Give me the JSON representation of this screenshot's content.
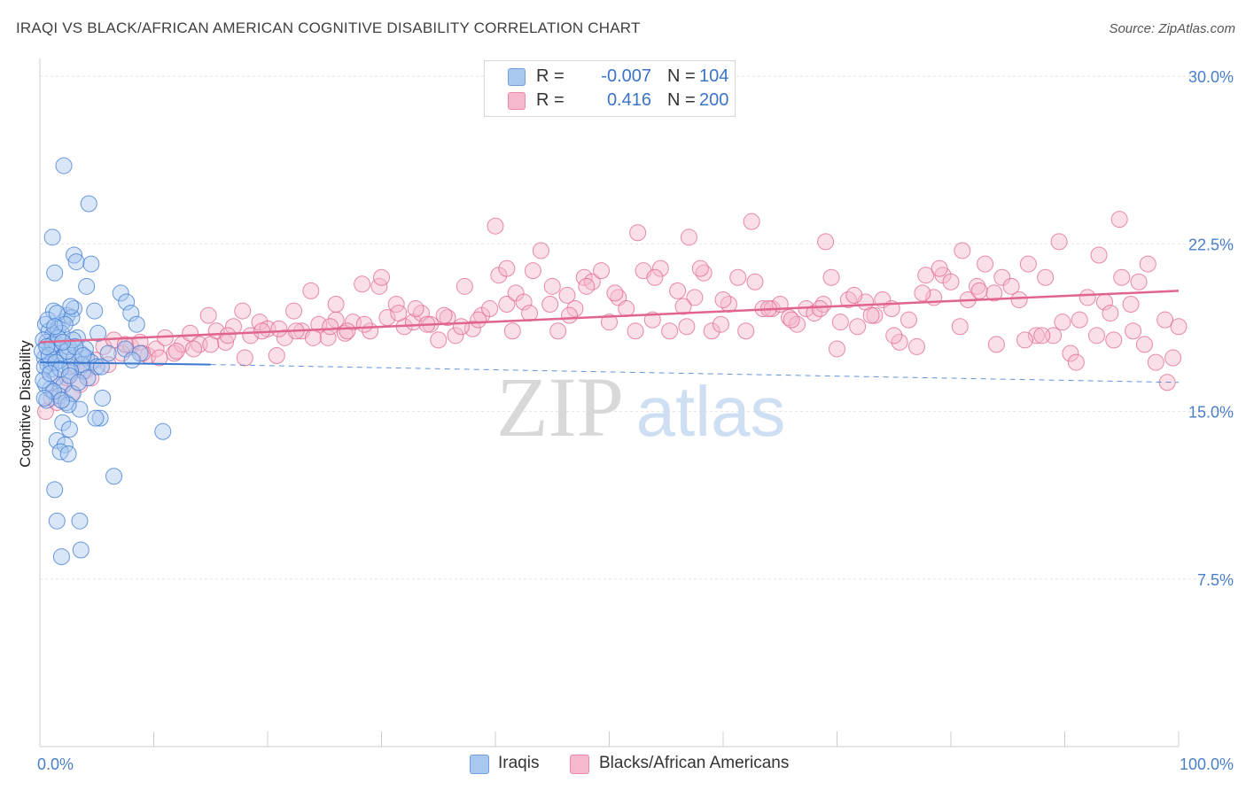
{
  "title": "IRAQI VS BLACK/AFRICAN AMERICAN COGNITIVE DISABILITY CORRELATION CHART",
  "source": "Source: ZipAtlas.com",
  "watermark": {
    "zip": "ZIP",
    "atlas": "atlas"
  },
  "legend": {
    "rows": [
      {
        "r_label": "R =",
        "r_value": "-0.007",
        "n_label": "N =",
        "n_value": "104",
        "color": "#a8c8f0"
      },
      {
        "r_label": "R =",
        "r_value": "0.416",
        "n_label": "N =",
        "n_value": "200",
        "color": "#f5b8cc"
      }
    ]
  },
  "bottom_legend": {
    "items": [
      {
        "label": "Iraqis",
        "color": "#a8c8f0"
      },
      {
        "label": "Blacks/African Americans",
        "color": "#f5b8cc"
      }
    ]
  },
  "chart_data": {
    "type": "scatter",
    "title": "IRAQI VS BLACK/AFRICAN AMERICAN COGNITIVE DISABILITY CORRELATION CHART",
    "xlabel": "",
    "ylabel": "Cognitive Disability",
    "xlim": [
      0,
      100
    ],
    "ylim": [
      0,
      30.8
    ],
    "x_tick_labels": [
      "0.0%",
      "100.0%"
    ],
    "y_ticks": [
      7.5,
      15.0,
      22.5,
      30.0
    ],
    "y_tick_labels": [
      "7.5%",
      "15.0%",
      "22.5%",
      "30.0%"
    ],
    "grid": true,
    "series": [
      {
        "name": "Iraqis",
        "color": "#3b78d0",
        "fill": "#a8c8f0",
        "trend": {
          "x0": 0,
          "y0": 17.2,
          "x1": 15,
          "y1": 17.1,
          "dashed_to_x": 100,
          "dashed_y1": 16.3
        },
        "points": [
          [
            0.5,
            18.9
          ],
          [
            0.8,
            18.6
          ],
          [
            1.1,
            18.4
          ],
          [
            0.6,
            18.1
          ],
          [
            1.5,
            18.0
          ],
          [
            0.9,
            17.8
          ],
          [
            1.3,
            17.6
          ],
          [
            0.4,
            17.4
          ],
          [
            1.8,
            17.3
          ],
          [
            2.2,
            17.5
          ],
          [
            0.7,
            17.1
          ],
          [
            1.0,
            16.9
          ],
          [
            2.6,
            17.0
          ],
          [
            0.3,
            18.2
          ],
          [
            1.6,
            18.7
          ],
          [
            2.0,
            19.0
          ],
          [
            2.4,
            19.3
          ],
          [
            1.2,
            19.5
          ],
          [
            3.0,
            19.6
          ],
          [
            2.8,
            19.2
          ],
          [
            1.9,
            18.5
          ],
          [
            3.3,
            18.3
          ],
          [
            2.5,
            17.9
          ],
          [
            3.6,
            17.6
          ],
          [
            4.1,
            17.4
          ],
          [
            4.5,
            17.2
          ],
          [
            5.0,
            17.0
          ],
          [
            3.8,
            16.8
          ],
          [
            1.4,
            16.5
          ],
          [
            2.1,
            16.2
          ],
          [
            0.9,
            16.0
          ],
          [
            1.7,
            15.7
          ],
          [
            2.3,
            15.4
          ],
          [
            3.5,
            15.1
          ],
          [
            0.6,
            15.5
          ],
          [
            2.9,
            15.8
          ],
          [
            2.0,
            14.5
          ],
          [
            2.6,
            14.2
          ],
          [
            1.5,
            13.7
          ],
          [
            2.2,
            13.5
          ],
          [
            1.8,
            13.2
          ],
          [
            2.5,
            13.1
          ],
          [
            1.3,
            11.5
          ],
          [
            1.5,
            10.1
          ],
          [
            3.5,
            10.1
          ],
          [
            1.9,
            8.5
          ],
          [
            3.6,
            8.8
          ],
          [
            2.1,
            26.0
          ],
          [
            4.3,
            24.3
          ],
          [
            1.1,
            22.8
          ],
          [
            3.0,
            22.0
          ],
          [
            1.3,
            21.2
          ],
          [
            3.2,
            21.7
          ],
          [
            4.5,
            21.6
          ],
          [
            4.1,
            20.6
          ],
          [
            7.1,
            20.3
          ],
          [
            7.6,
            19.9
          ],
          [
            2.7,
            19.7
          ],
          [
            4.8,
            19.5
          ],
          [
            8.0,
            19.4
          ],
          [
            8.5,
            18.9
          ],
          [
            5.1,
            18.5
          ],
          [
            0.2,
            17.7
          ],
          [
            1.0,
            17.2
          ],
          [
            3.0,
            17.4
          ],
          [
            4.0,
            17.8
          ],
          [
            6.0,
            17.6
          ],
          [
            7.5,
            17.8
          ],
          [
            8.8,
            17.6
          ],
          [
            8.1,
            17.3
          ],
          [
            5.4,
            17.0
          ],
          [
            3.7,
            17.1
          ],
          [
            2.7,
            16.8
          ],
          [
            4.2,
            16.5
          ],
          [
            5.5,
            15.6
          ],
          [
            5.3,
            14.7
          ],
          [
            4.9,
            14.7
          ],
          [
            6.5,
            12.1
          ],
          [
            10.8,
            14.1
          ],
          [
            0.5,
            16.2
          ],
          [
            0.4,
            17.0
          ],
          [
            1.1,
            18.0
          ],
          [
            1.6,
            18.3
          ],
          [
            2.4,
            17.7
          ],
          [
            2.9,
            18.2
          ],
          [
            0.8,
            17.5
          ],
          [
            1.4,
            17.2
          ],
          [
            1.8,
            16.9
          ],
          [
            0.3,
            16.4
          ],
          [
            2.6,
            16.6
          ],
          [
            3.1,
            17.9
          ],
          [
            0.7,
            19.1
          ],
          [
            1.5,
            19.4
          ],
          [
            2.2,
            18.9
          ],
          [
            0.9,
            16.7
          ],
          [
            3.4,
            16.3
          ],
          [
            1.2,
            15.9
          ],
          [
            2.5,
            15.3
          ],
          [
            0.4,
            15.6
          ],
          [
            1.9,
            15.5
          ],
          [
            1.3,
            18.8
          ],
          [
            2.0,
            18.1
          ],
          [
            0.6,
            17.9
          ],
          [
            3.8,
            17.5
          ]
        ]
      },
      {
        "name": "Blacks/African Americans",
        "color": "#e0648c",
        "fill": "#f5b8cc",
        "trend": {
          "x0": 0,
          "y0": 18.1,
          "x1": 100,
          "y1": 20.4
        },
        "points": [
          [
            0.5,
            15.0
          ],
          [
            1.0,
            15.6
          ],
          [
            1.8,
            16.2
          ],
          [
            2.4,
            16.5
          ],
          [
            3.2,
            17.0
          ],
          [
            4.0,
            16.8
          ],
          [
            4.9,
            17.3
          ],
          [
            5.6,
            17.9
          ],
          [
            6.5,
            18.2
          ],
          [
            7.2,
            17.6
          ],
          [
            8.0,
            17.9
          ],
          [
            8.8,
            18.1
          ],
          [
            9.5,
            17.5
          ],
          [
            10.2,
            17.8
          ],
          [
            11.0,
            18.3
          ],
          [
            11.8,
            17.6
          ],
          [
            12.5,
            18.0
          ],
          [
            13.2,
            18.5
          ],
          [
            14.0,
            18.0
          ],
          [
            14.8,
            19.3
          ],
          [
            15.5,
            18.6
          ],
          [
            16.3,
            18.1
          ],
          [
            17.0,
            18.8
          ],
          [
            17.8,
            19.5
          ],
          [
            18.5,
            18.4
          ],
          [
            19.3,
            19.0
          ],
          [
            20.0,
            18.7
          ],
          [
            20.8,
            17.5
          ],
          [
            21.5,
            18.3
          ],
          [
            22.3,
            19.5
          ],
          [
            23.0,
            18.6
          ],
          [
            23.8,
            20.4
          ],
          [
            24.5,
            18.9
          ],
          [
            25.3,
            18.3
          ],
          [
            26.0,
            19.1
          ],
          [
            26.8,
            18.5
          ],
          [
            27.5,
            19.0
          ],
          [
            28.3,
            20.7
          ],
          [
            29.0,
            18.6
          ],
          [
            29.8,
            20.6
          ],
          [
            30.5,
            19.2
          ],
          [
            31.3,
            19.8
          ],
          [
            32.0,
            18.8
          ],
          [
            32.8,
            19.0
          ],
          [
            33.5,
            19.4
          ],
          [
            34.3,
            18.9
          ],
          [
            35.0,
            18.2
          ],
          [
            35.8,
            19.2
          ],
          [
            36.5,
            18.4
          ],
          [
            37.3,
            20.6
          ],
          [
            38.0,
            18.7
          ],
          [
            38.8,
            19.3
          ],
          [
            39.5,
            19.6
          ],
          [
            40.3,
            21.1
          ],
          [
            41.0,
            19.8
          ],
          [
            41.8,
            20.3
          ],
          [
            42.5,
            19.9
          ],
          [
            43.3,
            21.3
          ],
          [
            44.0,
            22.2
          ],
          [
            44.8,
            19.8
          ],
          [
            45.5,
            18.6
          ],
          [
            46.3,
            20.2
          ],
          [
            47.0,
            19.6
          ],
          [
            47.8,
            21.0
          ],
          [
            48.5,
            20.8
          ],
          [
            49.3,
            21.3
          ],
          [
            50.0,
            19.0
          ],
          [
            50.8,
            20.1
          ],
          [
            51.5,
            19.6
          ],
          [
            52.3,
            18.6
          ],
          [
            53.0,
            21.3
          ],
          [
            53.8,
            19.1
          ],
          [
            54.5,
            21.4
          ],
          [
            55.3,
            18.6
          ],
          [
            56.0,
            20.4
          ],
          [
            56.8,
            18.8
          ],
          [
            57.5,
            20.1
          ],
          [
            58.3,
            21.2
          ],
          [
            59.0,
            18.6
          ],
          [
            59.8,
            18.9
          ],
          [
            60.5,
            19.8
          ],
          [
            61.3,
            21.0
          ],
          [
            62.0,
            18.6
          ],
          [
            62.8,
            20.8
          ],
          [
            63.5,
            19.6
          ],
          [
            64.3,
            19.6
          ],
          [
            65.0,
            19.8
          ],
          [
            65.8,
            19.2
          ],
          [
            66.5,
            18.9
          ],
          [
            67.3,
            19.6
          ],
          [
            68.0,
            19.4
          ],
          [
            68.8,
            19.8
          ],
          [
            69.5,
            21.0
          ],
          [
            70.3,
            19.0
          ],
          [
            71.0,
            20.0
          ],
          [
            71.8,
            18.8
          ],
          [
            72.5,
            19.9
          ],
          [
            73.3,
            19.3
          ],
          [
            74.0,
            20.0
          ],
          [
            74.8,
            19.6
          ],
          [
            75.5,
            18.1
          ],
          [
            76.3,
            19.1
          ],
          [
            77.0,
            17.9
          ],
          [
            77.8,
            21.1
          ],
          [
            78.5,
            20.1
          ],
          [
            79.3,
            21.1
          ],
          [
            80.0,
            20.8
          ],
          [
            80.8,
            18.8
          ],
          [
            81.5,
            20.0
          ],
          [
            82.3,
            20.6
          ],
          [
            83.0,
            21.6
          ],
          [
            83.8,
            20.3
          ],
          [
            84.5,
            21.0
          ],
          [
            85.3,
            20.6
          ],
          [
            86.0,
            20.0
          ],
          [
            86.8,
            21.6
          ],
          [
            87.5,
            18.4
          ],
          [
            88.3,
            21.0
          ],
          [
            89.0,
            18.4
          ],
          [
            89.8,
            19.0
          ],
          [
            90.5,
            17.6
          ],
          [
            91.3,
            19.1
          ],
          [
            92.0,
            20.1
          ],
          [
            92.8,
            18.4
          ],
          [
            93.5,
            19.9
          ],
          [
            94.3,
            18.2
          ],
          [
            95.0,
            21.0
          ],
          [
            95.8,
            19.8
          ],
          [
            96.5,
            20.8
          ],
          [
            97.3,
            21.6
          ],
          [
            98.0,
            17.2
          ],
          [
            98.8,
            19.1
          ],
          [
            99.5,
            17.4
          ],
          [
            100.0,
            18.8
          ],
          [
            99.0,
            16.3
          ],
          [
            97.0,
            18.0
          ],
          [
            96.0,
            18.6
          ],
          [
            94.0,
            19.4
          ],
          [
            93.0,
            22.0
          ],
          [
            91.0,
            17.2
          ],
          [
            89.5,
            22.6
          ],
          [
            88.0,
            18.4
          ],
          [
            86.5,
            18.2
          ],
          [
            84.0,
            18.0
          ],
          [
            82.5,
            20.4
          ],
          [
            81.0,
            22.2
          ],
          [
            79.0,
            21.4
          ],
          [
            77.5,
            20.3
          ],
          [
            75.0,
            18.4
          ],
          [
            73.0,
            19.3
          ],
          [
            71.5,
            20.2
          ],
          [
            70.0,
            17.8
          ],
          [
            68.5,
            19.6
          ],
          [
            66.0,
            19.1
          ],
          [
            64.0,
            19.6
          ],
          [
            62.5,
            23.5
          ],
          [
            60.0,
            20.0
          ],
          [
            58.0,
            21.4
          ],
          [
            56.5,
            19.7
          ],
          [
            54.0,
            21.0
          ],
          [
            52.5,
            23.0
          ],
          [
            50.5,
            20.3
          ],
          [
            48.0,
            20.6
          ],
          [
            46.5,
            19.3
          ],
          [
            45.0,
            20.6
          ],
          [
            43.0,
            19.4
          ],
          [
            41.5,
            18.6
          ],
          [
            40.0,
            23.3
          ],
          [
            38.5,
            19.1
          ],
          [
            37.0,
            18.8
          ],
          [
            35.5,
            19.3
          ],
          [
            34.0,
            18.9
          ],
          [
            33.0,
            19.6
          ],
          [
            31.5,
            19.4
          ],
          [
            30.0,
            21.0
          ],
          [
            28.5,
            18.9
          ],
          [
            27.0,
            18.6
          ],
          [
            25.5,
            18.8
          ],
          [
            24.0,
            18.3
          ],
          [
            22.5,
            18.6
          ],
          [
            21.0,
            18.7
          ],
          [
            19.5,
            18.6
          ],
          [
            18.0,
            17.4
          ],
          [
            16.5,
            18.4
          ],
          [
            15.0,
            18.0
          ],
          [
            13.5,
            17.8
          ],
          [
            12.0,
            17.7
          ],
          [
            10.5,
            17.4
          ],
          [
            9.0,
            17.6
          ],
          [
            7.5,
            18.0
          ],
          [
            6.0,
            17.1
          ],
          [
            4.5,
            16.5
          ],
          [
            3.5,
            16.2
          ],
          [
            2.8,
            15.8
          ],
          [
            1.5,
            15.4
          ],
          [
            94.8,
            23.6
          ],
          [
            69.0,
            22.6
          ],
          [
            41.0,
            21.4
          ],
          [
            57.0,
            22.8
          ],
          [
            26.0,
            19.8
          ]
        ]
      }
    ]
  }
}
